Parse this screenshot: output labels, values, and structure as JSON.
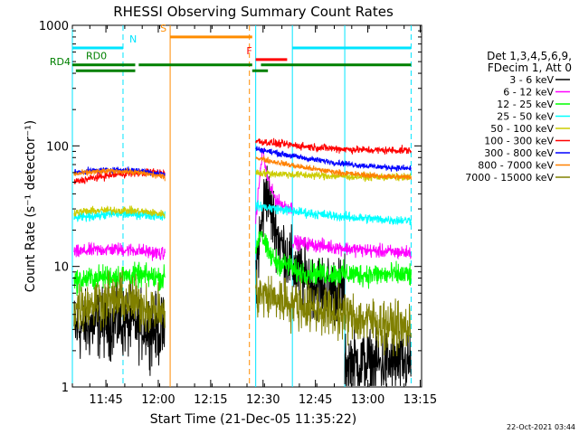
{
  "chart_data": {
    "type": "line",
    "title": "RHESSI Observing Summary Count Rates",
    "xlabel": "Start Time (21-Dec-05 11:35:22)",
    "ylabel": "Count Rate (s⁻¹ detector⁻¹)",
    "y_scale": "log",
    "ylim": [
      1,
      1000
    ],
    "xlim_minutes_since_start": [
      0,
      100
    ],
    "x_ticks": [
      {
        "label": "11:45",
        "minute": 9.6
      },
      {
        "label": "12:00",
        "minute": 24.6
      },
      {
        "label": "12:15",
        "minute": 39.6
      },
      {
        "label": "12:30",
        "minute": 54.6
      },
      {
        "label": "12:45",
        "minute": 69.6
      },
      {
        "label": "13:00",
        "minute": 84.6
      },
      {
        "label": "13:15",
        "minute": 99.6
      }
    ],
    "y_ticks": [
      {
        "label": "1",
        "value": 1
      },
      {
        "label": "10",
        "value": 10
      },
      {
        "label": "100",
        "value": 100
      },
      {
        "label": "1000",
        "value": 1000
      }
    ],
    "legend_header": [
      "Det 1,3,4,5,6,9,",
      "FDecim 1, Att 0"
    ],
    "flags": [
      {
        "label": "N",
        "color": "#00e5ff",
        "y": 650,
        "spans": [
          [
            0,
            14.5
          ],
          [
            63,
            97
          ]
        ]
      },
      {
        "label": "S",
        "color": "#ff8c00",
        "y": 800,
        "spans": [
          [
            28,
            51.5
          ]
        ]
      },
      {
        "label": "F",
        "color": "#ff0000",
        "y": 520,
        "spans": [
          [
            52.5,
            61.5
          ]
        ]
      },
      {
        "label": "RD0",
        "color": "#008000",
        "y": 470,
        "spans": [
          [
            0,
            18
          ],
          [
            19,
            51.5
          ],
          [
            54,
            97
          ]
        ]
      },
      {
        "label": "RD4",
        "color": "#008000",
        "y": 420,
        "spans": [
          [
            1,
            18
          ],
          [
            51.5,
            56
          ]
        ]
      }
    ],
    "vlines": [
      {
        "minute": 0,
        "color": "#00e5ff",
        "style": "solid"
      },
      {
        "minute": 14.5,
        "color": "#00e5ff",
        "style": "dashed"
      },
      {
        "minute": 28,
        "color": "#ff8c00",
        "style": "solid"
      },
      {
        "minute": 50.7,
        "color": "#ff8c00",
        "style": "dashed"
      },
      {
        "minute": 52.5,
        "color": "#00e5ff",
        "style": "solid"
      },
      {
        "minute": 63,
        "color": "#00e5ff",
        "style": "solid"
      },
      {
        "minute": 78,
        "color": "#00e5ff",
        "style": "solid"
      },
      {
        "minute": 97,
        "color": "#00e5ff",
        "style": "dashed"
      }
    ],
    "series": [
      {
        "name": "3 - 6 keV",
        "color": "#000000",
        "noise": 0.35,
        "segments": [
          {
            "x0": 0.5,
            "x1": 26.5,
            "y0": 3.0,
            "yc": 4.0,
            "y1": 2.8
          },
          {
            "x0": 52.5,
            "x1": 78,
            "y0": 9,
            "peak": {
              "x": 55.5,
              "y": 45
            },
            "y1": 6
          },
          {
            "x0": 78,
            "x1": 97,
            "y0": 1.6,
            "yc": 1.5,
            "y1": 1.6
          }
        ]
      },
      {
        "name": "6 - 12 keV",
        "color": "#ff00ff",
        "noise": 0.07,
        "segments": [
          {
            "x0": 0.5,
            "x1": 26.5,
            "y0": 13,
            "yc": 15,
            "y1": 12.5
          },
          {
            "x0": 52.5,
            "x1": 63,
            "y0": 25,
            "peak": {
              "x": 54.5,
              "y": 95
            },
            "y1": 30
          },
          {
            "x0": 63,
            "x1": 97,
            "y0": 16,
            "yc": 13.5,
            "y1": 13
          }
        ]
      },
      {
        "name": "12 - 25 keV",
        "color": "#00ff00",
        "noise": 0.12,
        "segments": [
          {
            "x0": 0.5,
            "x1": 26.5,
            "y0": 7.5,
            "yc": 9,
            "y1": 8
          },
          {
            "x0": 52.5,
            "x1": 63,
            "y0": 14,
            "peak": {
              "x": 54,
              "y": 20
            },
            "y1": 10
          },
          {
            "x0": 63,
            "x1": 97,
            "y0": 9,
            "yc": 8.5,
            "y1": 8.5
          }
        ]
      },
      {
        "name": "25 - 50 keV",
        "color": "#00ffff",
        "noise": 0.05,
        "segments": [
          {
            "x0": 0.5,
            "x1": 26.5,
            "y0": 25,
            "yc": 29,
            "y1": 26
          },
          {
            "x0": 52.5,
            "x1": 97,
            "y0": 32,
            "yc": 25,
            "y1": 24
          }
        ]
      },
      {
        "name": "50 - 100 keV",
        "color": "#cccc00",
        "noise": 0.04,
        "segments": [
          {
            "x0": 0.5,
            "x1": 26.5,
            "y0": 28,
            "yc": 31,
            "y1": 27
          },
          {
            "x0": 52.5,
            "x1": 97,
            "y0": 60,
            "yc": 55,
            "y1": 55
          }
        ]
      },
      {
        "name": "100 - 300 keV",
        "color": "#ff0000",
        "noise": 0.04,
        "segments": [
          {
            "x0": 0.5,
            "x1": 26.5,
            "y0": 50,
            "yc": 62,
            "y1": 60
          },
          {
            "x0": 52.5,
            "x1": 97,
            "y0": 110,
            "yc": 90,
            "y1": 92
          }
        ]
      },
      {
        "name": "300 - 800 keV",
        "color": "#0000ff",
        "noise": 0.03,
        "segments": [
          {
            "x0": 0.5,
            "x1": 26.5,
            "y0": 60,
            "yc": 68,
            "y1": 58
          },
          {
            "x0": 52.5,
            "x1": 97,
            "y0": 95,
            "yc": 68,
            "y1": 65
          }
        ]
      },
      {
        "name": "800 - 7000 keV",
        "color": "#ff8000",
        "noise": 0.03,
        "segments": [
          {
            "x0": 0.5,
            "x1": 26.5,
            "y0": 58,
            "yc": 67,
            "y1": 55
          },
          {
            "x0": 52.5,
            "x1": 97,
            "y0": 80,
            "yc": 56,
            "y1": 55
          }
        ]
      },
      {
        "name": "7000 - 15000 keV",
        "color": "#808000",
        "noise": 0.25,
        "segments": [
          {
            "x0": 0.5,
            "x1": 26.5,
            "y0": 4.5,
            "yc": 6.5,
            "y1": 4
          },
          {
            "x0": 52.5,
            "x1": 97,
            "y0": 6,
            "yc": 4,
            "y1": 3
          }
        ]
      }
    ],
    "grid": false,
    "legend_position": "right"
  },
  "footer": {
    "timestamp": "22-Oct-2021 03:44"
  }
}
